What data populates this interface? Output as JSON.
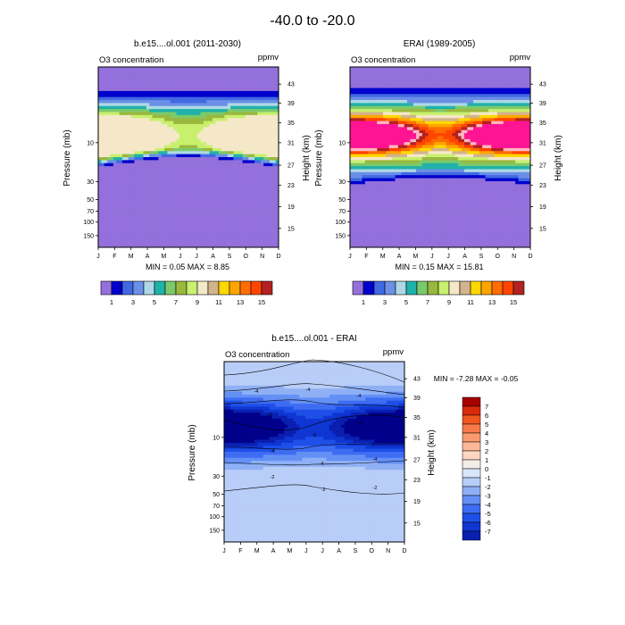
{
  "figure_title": "-40.0 to -20.0",
  "months": [
    "J",
    "F",
    "M",
    "A",
    "M",
    "J",
    "J",
    "A",
    "S",
    "O",
    "N",
    "D"
  ],
  "colors": {
    "abs_levels": [
      "#9370db",
      "#0000cd",
      "#4169e1",
      "#6a8fe6",
      "#aed8e6",
      "#20b2aa",
      "#7cc96b",
      "#9ab83e",
      "#c8f06e",
      "#f5e8c8",
      "#d2b48c",
      "#ffd700",
      "#ffa500",
      "#ff6d00",
      "#ff4500",
      "#b22222",
      "#ffb6c1",
      "#ff1493"
    ],
    "diff_levels": [
      "#00008b",
      "#0a1fb0",
      "#0f36d2",
      "#1e50e8",
      "#3e6cf2",
      "#6490f5",
      "#8fb0f5",
      "#b8cdf7",
      "#d8e6fb",
      "#f2ede6",
      "#ffd6c2",
      "#fdb899",
      "#fb9a70",
      "#f87a48",
      "#f1561d",
      "#d72a0c",
      "#a80000"
    ],
    "line": "#000000"
  },
  "chart_data": [
    {
      "type": "heatmap",
      "title": "b.e15....ol.001 (2011-2030)",
      "variable": "O3 concentration",
      "units": "ppmv",
      "ylabel_left": "Pressure (mb)",
      "ylabel_right": "Height (km)",
      "pressure_ticks": [
        "10",
        "30",
        "50",
        "70",
        "100",
        "150"
      ],
      "height_ticks": [
        "43",
        "39",
        "35",
        "31",
        "27",
        "23",
        "19",
        "15"
      ],
      "min_max": "MIN =  0.05  MAX =  8.85",
      "levels_model": "peak ~8.8 ppmv near 10 mb in Jan and Dec; vertical profile minimum 0.05"
    },
    {
      "type": "heatmap",
      "title": "ERAI (1989-2005)",
      "variable": "O3 concentration",
      "units": "ppmv",
      "ylabel_left": "Pressure (mb)",
      "ylabel_right": "Height (km)",
      "pressure_ticks": [
        "10",
        "30",
        "50",
        "70",
        "100",
        "150"
      ],
      "height_ticks": [
        "43",
        "39",
        "35",
        "31",
        "27",
        "23",
        "19",
        "15"
      ],
      "min_max": "MIN =  0.15  MAX =  15.81",
      "colorbar_labels": [
        "1",
        "3",
        "5",
        "7",
        "9",
        "11",
        "13",
        "15"
      ],
      "levels": [
        1,
        2,
        3,
        4,
        5,
        6,
        7,
        8,
        9,
        10,
        11,
        12,
        13,
        14,
        15
      ]
    },
    {
      "type": "heatmap",
      "title": "b.e15....ol.001 - ERAI",
      "variable": "O3 concentration",
      "units": "ppmv",
      "ylabel_left": "Pressure (mb)",
      "ylabel_right": "Height (km)",
      "pressure_ticks": [
        "10",
        "30",
        "50",
        "70",
        "100",
        "150"
      ],
      "height_ticks": [
        "43",
        "39",
        "35",
        "31",
        "27",
        "23",
        "19",
        "15"
      ],
      "min_max": "MIN =  -7.28  MAX =  -0.05",
      "colorbar_labels": [
        "7",
        "6",
        "5",
        "4",
        "3",
        "2",
        "1",
        "0",
        "-1",
        "-2",
        "-3",
        "-4",
        "-5",
        "-6",
        "-7"
      ],
      "contour_labels": [
        "-4",
        "-4",
        "-4",
        "-5",
        "-6",
        "-5",
        "-4",
        "-4",
        "-4",
        "-2",
        "-2",
        "-2"
      ]
    }
  ]
}
